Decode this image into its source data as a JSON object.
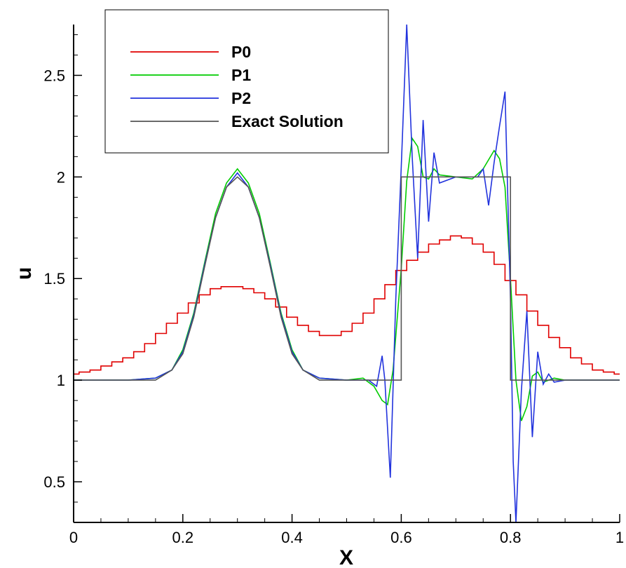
{
  "chart_data": {
    "type": "line",
    "xlabel": "X",
    "ylabel": "u",
    "xlim": [
      0,
      1
    ],
    "ylim": [
      0.3,
      2.75
    ],
    "x_ticks": [
      0,
      0.2,
      0.4,
      0.6,
      0.8,
      1
    ],
    "x_tick_labels": [
      "0",
      "0.2",
      "0.4",
      "0.6",
      "0.8",
      "1"
    ],
    "y_ticks": [
      0.5,
      1,
      1.5,
      2,
      2.5
    ],
    "y_tick_labels": [
      "0.5",
      "1",
      "1.5",
      "2",
      "2.5"
    ],
    "grid": false,
    "legend_position": "top-left",
    "series": [
      {
        "name": "P0",
        "color": "#e00000",
        "style": "step",
        "points": [
          [
            0,
            1.03
          ],
          [
            0.02,
            1.04
          ],
          [
            0.04,
            1.05
          ],
          [
            0.06,
            1.07
          ],
          [
            0.08,
            1.09
          ],
          [
            0.1,
            1.11
          ],
          [
            0.12,
            1.14
          ],
          [
            0.14,
            1.18
          ],
          [
            0.16,
            1.23
          ],
          [
            0.18,
            1.28
          ],
          [
            0.2,
            1.33
          ],
          [
            0.22,
            1.38
          ],
          [
            0.24,
            1.42
          ],
          [
            0.26,
            1.45
          ],
          [
            0.28,
            1.46
          ],
          [
            0.3,
            1.46
          ],
          [
            0.32,
            1.45
          ],
          [
            0.34,
            1.43
          ],
          [
            0.36,
            1.4
          ],
          [
            0.38,
            1.36
          ],
          [
            0.4,
            1.31
          ],
          [
            0.42,
            1.27
          ],
          [
            0.44,
            1.24
          ],
          [
            0.46,
            1.22
          ],
          [
            0.48,
            1.22
          ],
          [
            0.5,
            1.24
          ],
          [
            0.52,
            1.28
          ],
          [
            0.54,
            1.33
          ],
          [
            0.56,
            1.4
          ],
          [
            0.58,
            1.47
          ],
          [
            0.6,
            1.54
          ],
          [
            0.62,
            1.59
          ],
          [
            0.64,
            1.63
          ],
          [
            0.66,
            1.67
          ],
          [
            0.68,
            1.69
          ],
          [
            0.7,
            1.71
          ],
          [
            0.72,
            1.7
          ],
          [
            0.74,
            1.67
          ],
          [
            0.76,
            1.63
          ],
          [
            0.78,
            1.57
          ],
          [
            0.8,
            1.49
          ],
          [
            0.82,
            1.42
          ],
          [
            0.84,
            1.34
          ],
          [
            0.86,
            1.27
          ],
          [
            0.88,
            1.21
          ],
          [
            0.9,
            1.16
          ],
          [
            0.92,
            1.11
          ],
          [
            0.94,
            1.08
          ],
          [
            0.96,
            1.05
          ],
          [
            0.98,
            1.04
          ],
          [
            1,
            1.03
          ]
        ]
      },
      {
        "name": "P1",
        "color": "#00cc00",
        "style": "line",
        "points": [
          [
            0,
            1.0
          ],
          [
            0.1,
            1.0
          ],
          [
            0.15,
            1.01
          ],
          [
            0.18,
            1.05
          ],
          [
            0.2,
            1.15
          ],
          [
            0.22,
            1.33
          ],
          [
            0.24,
            1.58
          ],
          [
            0.26,
            1.82
          ],
          [
            0.28,
            1.97
          ],
          [
            0.3,
            2.04
          ],
          [
            0.32,
            1.97
          ],
          [
            0.34,
            1.82
          ],
          [
            0.36,
            1.58
          ],
          [
            0.38,
            1.33
          ],
          [
            0.4,
            1.15
          ],
          [
            0.42,
            1.05
          ],
          [
            0.45,
            1.01
          ],
          [
            0.5,
            1.0
          ],
          [
            0.53,
            1.01
          ],
          [
            0.55,
            0.97
          ],
          [
            0.565,
            0.9
          ],
          [
            0.575,
            0.88
          ],
          [
            0.585,
            1.05
          ],
          [
            0.6,
            1.55
          ],
          [
            0.61,
            1.98
          ],
          [
            0.62,
            2.19
          ],
          [
            0.63,
            2.15
          ],
          [
            0.64,
            2.0
          ],
          [
            0.65,
            1.99
          ],
          [
            0.66,
            2.04
          ],
          [
            0.67,
            2.01
          ],
          [
            0.7,
            2.0
          ],
          [
            0.73,
            1.99
          ],
          [
            0.75,
            2.04
          ],
          [
            0.77,
            2.13
          ],
          [
            0.78,
            2.09
          ],
          [
            0.79,
            1.95
          ],
          [
            0.8,
            1.5
          ],
          [
            0.81,
            1.0
          ],
          [
            0.82,
            0.8
          ],
          [
            0.83,
            0.87
          ],
          [
            0.84,
            1.02
          ],
          [
            0.85,
            1.04
          ],
          [
            0.86,
            0.99
          ],
          [
            0.88,
            1.01
          ],
          [
            0.9,
            1.0
          ],
          [
            1,
            1.0
          ]
        ]
      },
      {
        "name": "P2",
        "color": "#2233dd",
        "style": "line",
        "points": [
          [
            0,
            1.0
          ],
          [
            0.1,
            1.0
          ],
          [
            0.15,
            1.01
          ],
          [
            0.18,
            1.05
          ],
          [
            0.2,
            1.14
          ],
          [
            0.22,
            1.32
          ],
          [
            0.24,
            1.57
          ],
          [
            0.26,
            1.8
          ],
          [
            0.28,
            1.95
          ],
          [
            0.3,
            2.02
          ],
          [
            0.32,
            1.95
          ],
          [
            0.34,
            1.8
          ],
          [
            0.36,
            1.57
          ],
          [
            0.38,
            1.32
          ],
          [
            0.4,
            1.14
          ],
          [
            0.42,
            1.05
          ],
          [
            0.45,
            1.01
          ],
          [
            0.5,
            1.0
          ],
          [
            0.54,
            1.0
          ],
          [
            0.555,
            0.97
          ],
          [
            0.565,
            1.12
          ],
          [
            0.57,
            1.0
          ],
          [
            0.58,
            0.52
          ],
          [
            0.59,
            1.4
          ],
          [
            0.6,
            2.05
          ],
          [
            0.605,
            2.4
          ],
          [
            0.61,
            2.75
          ],
          [
            0.62,
            2.1
          ],
          [
            0.63,
            1.6
          ],
          [
            0.64,
            2.28
          ],
          [
            0.65,
            1.78
          ],
          [
            0.66,
            2.12
          ],
          [
            0.67,
            1.97
          ],
          [
            0.7,
            2.0
          ],
          [
            0.74,
            2.0
          ],
          [
            0.75,
            2.04
          ],
          [
            0.76,
            1.86
          ],
          [
            0.77,
            2.07
          ],
          [
            0.78,
            2.25
          ],
          [
            0.79,
            2.42
          ],
          [
            0.8,
            1.4
          ],
          [
            0.805,
            0.6
          ],
          [
            0.81,
            0.3
          ],
          [
            0.82,
            0.95
          ],
          [
            0.83,
            1.34
          ],
          [
            0.84,
            0.72
          ],
          [
            0.85,
            1.14
          ],
          [
            0.86,
            0.98
          ],
          [
            0.87,
            1.03
          ],
          [
            0.88,
            0.99
          ],
          [
            0.9,
            1.0
          ],
          [
            1,
            1.0
          ]
        ]
      },
      {
        "name": "Exact Solution",
        "color": "#555555",
        "style": "line",
        "points": [
          [
            0,
            1.0
          ],
          [
            0.1,
            1.0
          ],
          [
            0.15,
            1.0
          ],
          [
            0.18,
            1.05
          ],
          [
            0.2,
            1.13
          ],
          [
            0.22,
            1.31
          ],
          [
            0.24,
            1.56
          ],
          [
            0.26,
            1.8
          ],
          [
            0.28,
            1.95
          ],
          [
            0.3,
            2.0
          ],
          [
            0.32,
            1.95
          ],
          [
            0.34,
            1.8
          ],
          [
            0.36,
            1.56
          ],
          [
            0.38,
            1.31
          ],
          [
            0.4,
            1.13
          ],
          [
            0.42,
            1.05
          ],
          [
            0.45,
            1.0
          ],
          [
            0.5,
            1.0
          ],
          [
            0.6,
            1.0
          ],
          [
            0.6,
            2.0
          ],
          [
            0.8,
            2.0
          ],
          [
            0.8,
            1.0
          ],
          [
            1,
            1.0
          ]
        ]
      }
    ]
  }
}
